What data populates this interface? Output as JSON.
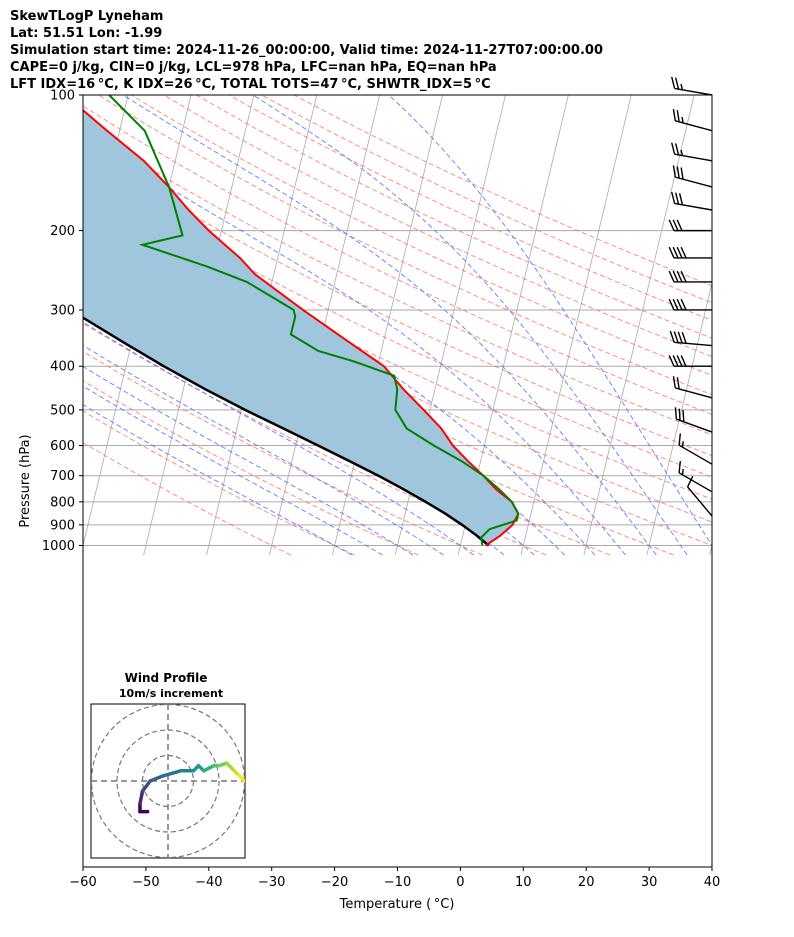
{
  "header": {
    "title": "SkewTLogP Lyneham",
    "location": "Lat: 51.51   Lon: -1.99",
    "times": "Simulation start time: 2024-11-26_00:00:00, Valid time: 2024-11-27T07:00:00.00",
    "params": "CAPE=0 j/kg, CIN=0 j/kg, LCL=978 hPa, LFC=nan hPa, EQ=nan hPa",
    "indices": "LFT IDX=16 °C, K IDX=26 °C, TOTAL TOTS=47 °C, SHWTR_IDX=5 °C"
  },
  "chart_data": {
    "type": "line",
    "subtype": "skew-t log-p",
    "xlabel": "Temperature ( °C)",
    "ylabel": "Pressure (hPa)",
    "xlim": [
      -60,
      40
    ],
    "ylim": [
      1050,
      100
    ],
    "y_scale": "log",
    "x_ticks": [
      "−60",
      "−50",
      "−40",
      "−30",
      "−20",
      "−10",
      "0",
      "10",
      "20",
      "30",
      "40"
    ],
    "y_ticks": [
      "100",
      "200",
      "300",
      "400",
      "500",
      "600",
      "700",
      "800",
      "900",
      "1000"
    ],
    "grid": true,
    "colors": {
      "temperature": "#ff0000",
      "dewpoint": "#008000",
      "parcel": "#000000",
      "shade": "#a0c6de",
      "dry_adiabats": "#ff6666",
      "moist_adiabats": "#5566ff",
      "isotherms": "#aaaaaa"
    },
    "series": [
      {
        "key": "temperature",
        "p": [
          1000,
          950,
          900,
          850,
          800,
          750,
          700,
          650,
          600,
          550,
          500,
          450,
          400,
          350,
          300,
          250,
          230,
          200,
          180,
          160,
          140,
          120,
          100
        ],
        "t": [
          4,
          6,
          7.5,
          8,
          6.5,
          3.5,
          1,
          -2,
          -5,
          -7.5,
          -11,
          -15,
          -19,
          -26,
          -34,
          -43,
          -46,
          -52,
          -56,
          -60,
          -65,
          -72,
          -80
        ]
      },
      {
        "key": "dewpoint",
        "p": [
          1000,
          960,
          920,
          880,
          850,
          800,
          750,
          700,
          650,
          600,
          550,
          500,
          450,
          420,
          390,
          370,
          340,
          310,
          300,
          260,
          240,
          215,
          205,
          170,
          160,
          120,
          100
        ],
        "t": [
          3.5,
          3,
          4,
          8,
          8,
          6.5,
          4,
          1,
          -3,
          -8,
          -13,
          -15.5,
          -16,
          -17,
          -24,
          -30,
          -35,
          -35,
          -35.5,
          -44,
          -51,
          -62,
          -56,
          -59,
          -60,
          -66,
          -73
        ]
      },
      {
        "key": "parcel",
        "p": [
          1000,
          950,
          900,
          850,
          800,
          750,
          700,
          650,
          600,
          550,
          500,
          450,
          400,
          350,
          300,
          250,
          200,
          150,
          100
        ],
        "t": [
          4.5,
          2.2,
          -0.5,
          -3.6,
          -7.2,
          -11.2,
          -15.7,
          -20.8,
          -26.4,
          -32.6,
          -39.4,
          -46.5,
          -54,
          -62,
          -71,
          -81.5,
          -94,
          -109.5,
          -131
        ]
      }
    ],
    "wind_barbs": [
      {
        "p": 100,
        "speed_kt": 25,
        "dir_deg": 280
      },
      {
        "p": 120,
        "speed_kt": 25,
        "dir_deg": 285
      },
      {
        "p": 140,
        "speed_kt": 25,
        "dir_deg": 280
      },
      {
        "p": 160,
        "speed_kt": 30,
        "dir_deg": 285
      },
      {
        "p": 180,
        "speed_kt": 30,
        "dir_deg": 280
      },
      {
        "p": 200,
        "speed_kt": 30,
        "dir_deg": 270
      },
      {
        "p": 230,
        "speed_kt": 40,
        "dir_deg": 270
      },
      {
        "p": 260,
        "speed_kt": 40,
        "dir_deg": 270
      },
      {
        "p": 300,
        "speed_kt": 40,
        "dir_deg": 270
      },
      {
        "p": 360,
        "speed_kt": 40,
        "dir_deg": 275
      },
      {
        "p": 400,
        "speed_kt": 40,
        "dir_deg": 270
      },
      {
        "p": 470,
        "speed_kt": 20,
        "dir_deg": 285
      },
      {
        "p": 560,
        "speed_kt": 30,
        "dir_deg": 290
      },
      {
        "p": 660,
        "speed_kt": 15,
        "dir_deg": 300
      },
      {
        "p": 760,
        "speed_kt": 15,
        "dir_deg": 300
      },
      {
        "p": 860,
        "speed_kt": 10,
        "dir_deg": 320
      }
    ],
    "inset": {
      "title": "Wind Profile",
      "subtitle": "10m/s increment",
      "rings_ms": [
        10,
        20,
        30
      ],
      "hodograph_u": [
        -8,
        -11,
        -11,
        -10,
        -7,
        -2,
        5,
        10,
        12,
        14,
        18,
        20,
        23,
        26,
        28,
        30
      ],
      "hodograph_v": [
        -12,
        -12,
        -9,
        -4,
        0,
        2,
        4,
        4,
        6,
        4,
        6,
        6,
        7,
        4,
        2,
        0
      ]
    }
  }
}
